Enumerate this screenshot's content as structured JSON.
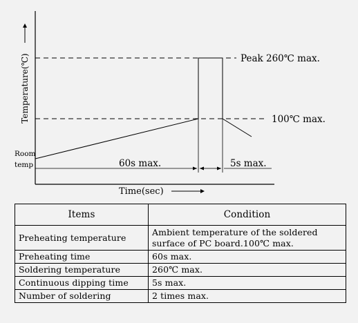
{
  "diagram": {
    "y_axis_label": "Temperature(℃)",
    "x_axis_label": "Time(sec)",
    "peak_label": "Peak 260℃ max.",
    "preheat_label": "100℃ max.",
    "room_temp_label_line1": "Room",
    "room_temp_label_line2": "temp",
    "preheat_time_label": "60s max.",
    "dip_time_label": "5s max."
  },
  "table": {
    "headers": [
      "Items",
      "Condition"
    ],
    "rows": [
      {
        "item": "Preheating temperature",
        "condition": "Ambient temperature of the soldered surface of PC board.100℃ max."
      },
      {
        "item": "Preheating time",
        "condition": "60s max."
      },
      {
        "item": "Soldering temperature",
        "condition": "260℃ max."
      },
      {
        "item": "Continuous dipping time",
        "condition": "5s max."
      },
      {
        "item": "Number of soldering",
        "condition": "2 times max."
      }
    ]
  }
}
